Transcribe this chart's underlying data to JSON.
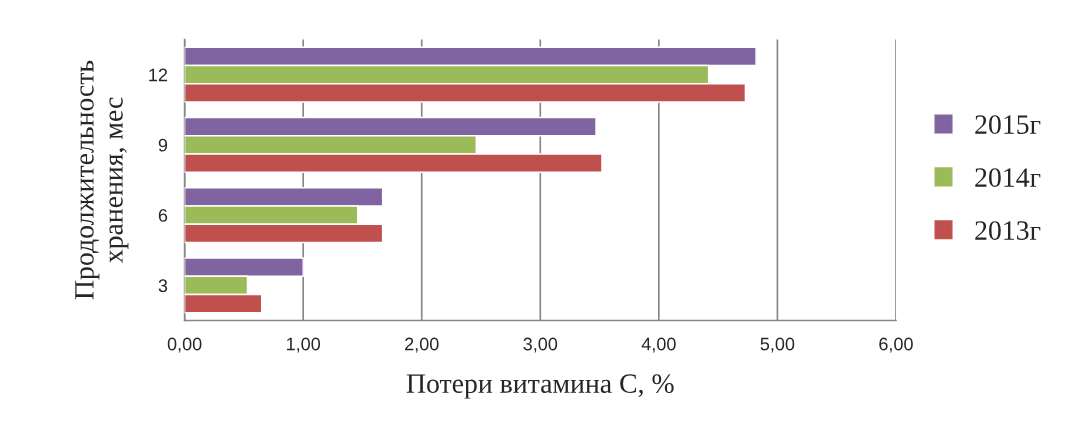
{
  "chart_data": {
    "type": "bar",
    "orientation": "horizontal",
    "xlabel": "Потери витамина С, %",
    "ylabel": "Продолжительность\nхранения, мес",
    "categories": [
      "12",
      "9",
      "6",
      "3"
    ],
    "series": [
      {
        "name": "2015г",
        "color": "#8064a2",
        "values": [
          4.82,
          3.47,
          1.67,
          1.0
        ]
      },
      {
        "name": "2014г",
        "color": "#9bbb59",
        "values": [
          4.42,
          2.46,
          1.46,
          0.53
        ]
      },
      {
        "name": "2013г",
        "color": "#c0504d",
        "values": [
          4.73,
          3.52,
          1.67,
          0.65
        ]
      }
    ],
    "xlim": [
      0,
      6
    ],
    "xticks": [
      {
        "value": 0,
        "label": "0,00"
      },
      {
        "value": 1,
        "label": "1,00"
      },
      {
        "value": 2,
        "label": "2,00"
      },
      {
        "value": 3,
        "label": "3,00"
      },
      {
        "value": 4,
        "label": "4,00"
      },
      {
        "value": 5,
        "label": "5,00"
      },
      {
        "value": 6,
        "label": "6,00"
      }
    ],
    "grid": "x",
    "legend": "right"
  }
}
